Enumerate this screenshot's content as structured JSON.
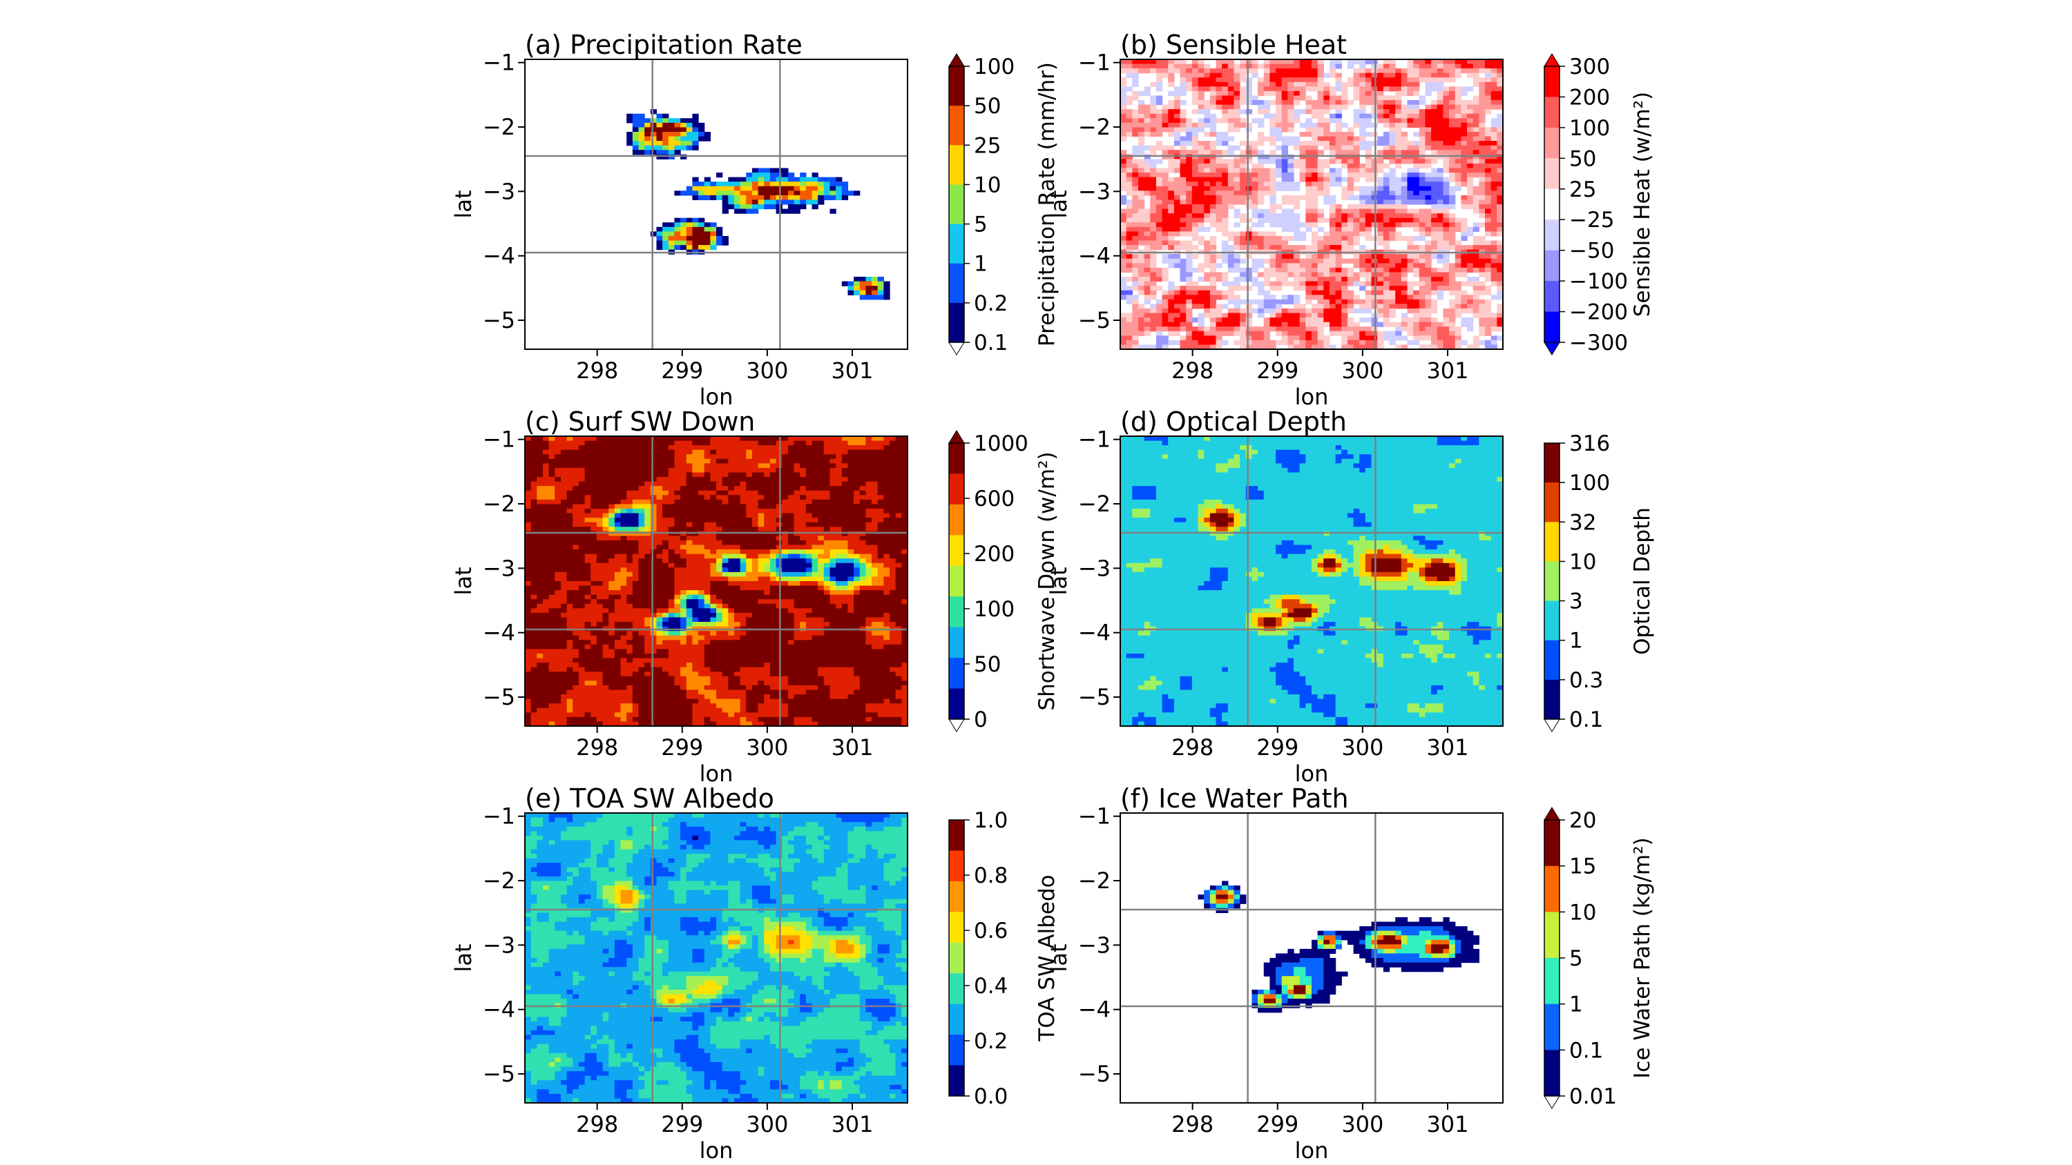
{
  "figure": {
    "panels": [
      {
        "id": "a",
        "title": "(a) Precipitation Rate",
        "xlabel": "lon",
        "ylabel": "lat",
        "colorbar_label": "Precipitation Rate (mm/hr)",
        "colorbar_ticks": [
          "100",
          "50",
          "25",
          "10",
          "5",
          "1",
          "0.2",
          "0.1"
        ],
        "colorbar_colors": [
          "#7a0000",
          "#f55a00",
          "#ffd400",
          "#8be84a",
          "#12c8f0",
          "#0a52ff",
          "#00007f"
        ],
        "extend_top": true,
        "extend_bottom": true,
        "extend_top_color": "#7a0000",
        "extend_bottom_color": "#ffffff",
        "field": "precip"
      },
      {
        "id": "b",
        "title": "(b) Sensible Heat",
        "xlabel": "lon",
        "ylabel": "lat",
        "colorbar_label": "Sensible Heat (w/m²)",
        "colorbar_ticks": [
          "300",
          "200",
          "100",
          "50",
          "25",
          "−25",
          "−50",
          "−100",
          "−200",
          "−300"
        ],
        "colorbar_colors": [
          "#ff0000",
          "#ff5a5a",
          "#ff9898",
          "#ffcccc",
          "#ffffff",
          "#d0d0ff",
          "#9898ff",
          "#5a5aff",
          "#0000ff"
        ],
        "extend_top": true,
        "extend_bottom": true,
        "extend_top_color": "#ff0000",
        "extend_bottom_color": "#0000ff",
        "field": "sensible"
      },
      {
        "id": "c",
        "title": "(c) Surf SW Down",
        "xlabel": "lon",
        "ylabel": "lat",
        "colorbar_label": "Shortwave Down (w/m²)",
        "colorbar_ticks": [
          "1000",
          "600",
          "200",
          "100",
          "50",
          "0"
        ],
        "colorbar_colors": [
          "#7a0000",
          "#e02000",
          "#ff8800",
          "#ffe000",
          "#b0f040",
          "#30e0a0",
          "#10b0f0",
          "#0050ff",
          "#00008f"
        ],
        "extend_top": true,
        "extend_bottom": true,
        "extend_top_color": "#7a0000",
        "extend_bottom_color": "#ffffff",
        "field": "swdown"
      },
      {
        "id": "d",
        "title": "(d) Optical Depth",
        "xlabel": "lon",
        "ylabel": "lat",
        "colorbar_label": "Optical Depth",
        "colorbar_ticks": [
          "316",
          "100",
          "32",
          "10",
          "3",
          "1",
          "0.3",
          "0.1"
        ],
        "colorbar_colors": [
          "#7a0000",
          "#e04000",
          "#ffd800",
          "#a0f060",
          "#20d0e0",
          "#0050ff",
          "#00007f"
        ],
        "extend_top": false,
        "extend_bottom": true,
        "extend_top_color": "#7a0000",
        "extend_bottom_color": "#ffffff",
        "field": "optdepth"
      },
      {
        "id": "e",
        "title": "(e) TOA SW Albedo",
        "xlabel": "lon",
        "ylabel": "lat",
        "colorbar_label": "TOA SW Albedo",
        "colorbar_ticks": [
          "1.0",
          "0.8",
          "0.6",
          "0.4",
          "0.2",
          "0.0"
        ],
        "colorbar_colors": [
          "#7a0000",
          "#ff3a00",
          "#ff9800",
          "#ffe200",
          "#a8f050",
          "#30e0b0",
          "#10a8f0",
          "#0050ff",
          "#00007f"
        ],
        "extend_top": false,
        "extend_bottom": false,
        "extend_top_color": "#7a0000",
        "extend_bottom_color": "#00007f",
        "field": "albedo"
      },
      {
        "id": "f",
        "title": "(f) Ice Water Path",
        "xlabel": "lon",
        "ylabel": "lat",
        "colorbar_label": "Ice Water Path (kg/m²)",
        "colorbar_ticks": [
          "20",
          "15",
          "10",
          "5",
          "1",
          "0.1",
          "0.01"
        ],
        "colorbar_colors": [
          "#7a0000",
          "#ff6a00",
          "#c8f03a",
          "#30f0c0",
          "#0a64ff",
          "#00007f"
        ],
        "extend_top": true,
        "extend_bottom": true,
        "extend_top_color": "#7a0000",
        "extend_bottom_color": "#ffffff",
        "field": "iwp"
      }
    ]
  },
  "chart_data": [
    {
      "type": "heatmap",
      "title": "(a) Precipitation Rate",
      "xlabel": "lon",
      "ylabel": "lat",
      "xticks": [
        298,
        299,
        300,
        301
      ],
      "yticks": [
        -1,
        -2,
        -3,
        -4,
        -5
      ],
      "xlim": [
        297.15,
        301.65
      ],
      "ylim": [
        -5.45,
        -0.95
      ],
      "color_levels": [
        0.1,
        0.2,
        1,
        5,
        10,
        25,
        50,
        100
      ],
      "colorbar_label": "Precipitation Rate (mm/hr)"
    },
    {
      "type": "heatmap",
      "title": "(b) Sensible Heat",
      "xlabel": "lon",
      "ylabel": "lat",
      "xticks": [
        298,
        299,
        300,
        301
      ],
      "yticks": [
        -1,
        -2,
        -3,
        -4,
        -5
      ],
      "xlim": [
        297.15,
        301.65
      ],
      "ylim": [
        -5.45,
        -0.95
      ],
      "color_levels": [
        -300,
        -200,
        -100,
        -50,
        -25,
        25,
        50,
        100,
        200,
        300
      ],
      "colorbar_label": "Sensible Heat (w/m²)"
    },
    {
      "type": "heatmap",
      "title": "(c) Surf SW Down",
      "xlabel": "lon",
      "ylabel": "lat",
      "xticks": [
        298,
        299,
        300,
        301
      ],
      "yticks": [
        -1,
        -2,
        -3,
        -4,
        -5
      ],
      "xlim": [
        297.15,
        301.65
      ],
      "ylim": [
        -5.45,
        -0.95
      ],
      "color_levels": [
        0,
        50,
        100,
        200,
        600,
        1000
      ],
      "colorbar_label": "Shortwave Down (w/m²)"
    },
    {
      "type": "heatmap",
      "title": "(d) Optical Depth",
      "xlabel": "lon",
      "ylabel": "lat",
      "xticks": [
        298,
        299,
        300,
        301
      ],
      "yticks": [
        -1,
        -2,
        -3,
        -4,
        -5
      ],
      "xlim": [
        297.15,
        301.65
      ],
      "ylim": [
        -5.45,
        -0.95
      ],
      "color_levels": [
        0.1,
        0.3,
        1,
        3,
        10,
        32,
        100,
        316
      ],
      "colorbar_label": "Optical Depth"
    },
    {
      "type": "heatmap",
      "title": "(e) TOA SW Albedo",
      "xlabel": "lon",
      "ylabel": "lat",
      "xticks": [
        298,
        299,
        300,
        301
      ],
      "yticks": [
        -1,
        -2,
        -3,
        -4,
        -5
      ],
      "xlim": [
        297.15,
        301.65
      ],
      "ylim": [
        -5.45,
        -0.95
      ],
      "color_levels": [
        0.0,
        0.2,
        0.4,
        0.6,
        0.8,
        1.0
      ],
      "colorbar_label": "TOA SW Albedo"
    },
    {
      "type": "heatmap",
      "title": "(f) Ice Water Path",
      "xlabel": "lon",
      "ylabel": "lat",
      "xticks": [
        298,
        299,
        300,
        301
      ],
      "yticks": [
        -1,
        -2,
        -3,
        -4,
        -5
      ],
      "xlim": [
        297.15,
        301.65
      ],
      "ylim": [
        -5.45,
        -0.95
      ],
      "color_levels": [
        0.01,
        0.1,
        1,
        5,
        10,
        15,
        20
      ],
      "colorbar_label": "Ice Water Path (kg/m²)"
    }
  ]
}
